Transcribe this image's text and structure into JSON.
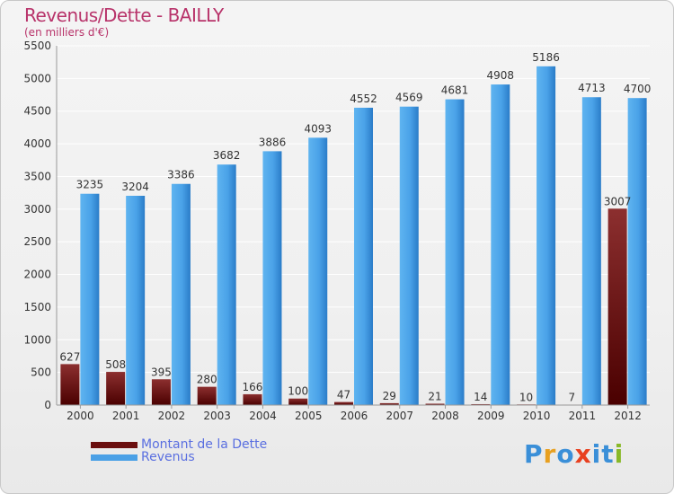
{
  "title": "Revenus/Dette - BAILLY",
  "subtitle": "(en milliers d'€)",
  "colors": {
    "title": "#b8336a",
    "dette_top": "#8c2f2f",
    "dette_bottom": "#4a0000",
    "revenus_light": "#5fb0ee",
    "revenus_dark": "#2477c4",
    "legend_text": "#5a6fe0"
  },
  "legend": [
    {
      "label": "Montant de la Dette",
      "color": "#6a0e0e"
    },
    {
      "label": "Revenus",
      "color": "#4aa0e6"
    }
  ],
  "logo": {
    "letters": [
      "P",
      "r",
      "o",
      "x",
      "i",
      "t",
      "i"
    ],
    "colors": [
      "#3a8fd8",
      "#e8a020",
      "#3a8fd8",
      "#e84020",
      "#3a8fd8",
      "#3a8fd8",
      "#88b828"
    ]
  },
  "chart_data": {
    "type": "bar",
    "categories": [
      "2000",
      "2001",
      "2002",
      "2003",
      "2004",
      "2005",
      "2006",
      "2007",
      "2008",
      "2009",
      "2010",
      "2011",
      "2012"
    ],
    "series": [
      {
        "name": "Montant de la Dette",
        "values": [
          627,
          508,
          395,
          280,
          166,
          100,
          47,
          29,
          21,
          14,
          10,
          7,
          3007
        ]
      },
      {
        "name": "Revenus",
        "values": [
          3235,
          3204,
          3386,
          3682,
          3886,
          4093,
          4552,
          4569,
          4681,
          4908,
          5186,
          4713,
          4700
        ]
      }
    ],
    "y_ticks": [
      "0",
      "500",
      "1000",
      "1500",
      "2000",
      "2500",
      "3000",
      "3500",
      "4000",
      "4500",
      "5000",
      "5500"
    ],
    "ylim": [
      0,
      5500
    ],
    "grid": true,
    "legend_position": "bottom-left"
  }
}
